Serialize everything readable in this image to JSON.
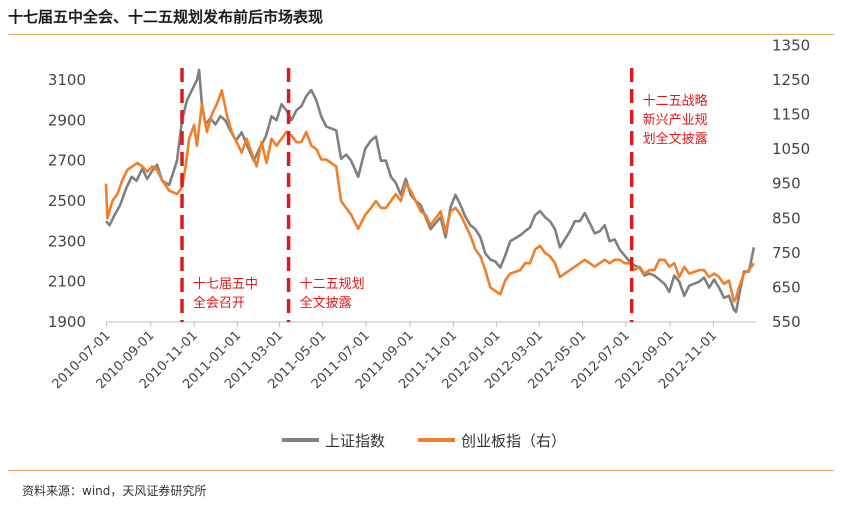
{
  "title": "十七届五中全会、十二五规划发布前后市场表现",
  "source": "资料来源：wind，天风证券研究所",
  "colors": {
    "sh": "#808080",
    "cy": "#f07f2b",
    "event": "#e01a1a",
    "rule": "#e8a75c"
  },
  "chart_data": {
    "type": "line",
    "x_ticks": [
      "2010-07-01",
      "2010-09-01",
      "2010-11-01",
      "2011-01-01",
      "2011-03-01",
      "2011-05-01",
      "2011-07-01",
      "2011-09-01",
      "2011-11-01",
      "2012-01-01",
      "2012-03-01",
      "2012-05-01",
      "2012-07-01",
      "2012-09-01",
      "2012-11-01"
    ],
    "y_left": {
      "ticks": [
        1900,
        2100,
        2300,
        2500,
        2700,
        2900,
        3100
      ],
      "range": [
        1900,
        3200
      ]
    },
    "y_right": {
      "ticks": [
        550,
        650,
        750,
        850,
        950,
        1050,
        1150,
        1250,
        1350
      ],
      "range": [
        550,
        1350
      ]
    },
    "legend": [
      "上证指数",
      "创业板指（右）"
    ],
    "series": [
      {
        "name": "上证指数",
        "axis": "left",
        "points": [
          [
            "2010-06-30",
            2400
          ],
          [
            "2010-07-05",
            2380
          ],
          [
            "2010-07-12",
            2430
          ],
          [
            "2010-07-20",
            2480
          ],
          [
            "2010-07-28",
            2560
          ],
          [
            "2010-08-05",
            2620
          ],
          [
            "2010-08-12",
            2600
          ],
          [
            "2010-08-20",
            2660
          ],
          [
            "2010-08-27",
            2610
          ],
          [
            "2010-09-03",
            2650
          ],
          [
            "2010-09-10",
            2680
          ],
          [
            "2010-09-17",
            2600
          ],
          [
            "2010-09-27",
            2580
          ],
          [
            "2010-10-08",
            2700
          ],
          [
            "2010-10-15",
            2900
          ],
          [
            "2010-10-22",
            3000
          ],
          [
            "2010-10-29",
            3050
          ],
          [
            "2010-11-05",
            3100
          ],
          [
            "2010-11-08",
            3150
          ],
          [
            "2010-11-12",
            2980
          ],
          [
            "2010-11-17",
            2880
          ],
          [
            "2010-11-24",
            2910
          ],
          [
            "2010-12-01",
            2880
          ],
          [
            "2010-12-08",
            2920
          ],
          [
            "2010-12-15",
            2900
          ],
          [
            "2010-12-22",
            2850
          ],
          [
            "2010-12-30",
            2800
          ],
          [
            "2011-01-07",
            2840
          ],
          [
            "2011-01-14",
            2780
          ],
          [
            "2011-01-24",
            2700
          ],
          [
            "2011-02-01",
            2760
          ],
          [
            "2011-02-10",
            2820
          ],
          [
            "2011-02-18",
            2920
          ],
          [
            "2011-02-25",
            2900
          ],
          [
            "2011-03-04",
            2980
          ],
          [
            "2011-03-11",
            2950
          ],
          [
            "2011-03-18",
            2900
          ],
          [
            "2011-03-25",
            2950
          ],
          [
            "2011-04-01",
            2970
          ],
          [
            "2011-04-08",
            3020
          ],
          [
            "2011-04-15",
            3050
          ],
          [
            "2011-04-22",
            3000
          ],
          [
            "2011-04-29",
            2920
          ],
          [
            "2011-05-06",
            2870
          ],
          [
            "2011-05-13",
            2860
          ],
          [
            "2011-05-20",
            2850
          ],
          [
            "2011-05-27",
            2710
          ],
          [
            "2011-06-03",
            2730
          ],
          [
            "2011-06-10",
            2700
          ],
          [
            "2011-06-20",
            2620
          ],
          [
            "2011-06-30",
            2760
          ],
          [
            "2011-07-08",
            2800
          ],
          [
            "2011-07-15",
            2820
          ],
          [
            "2011-07-22",
            2700
          ],
          [
            "2011-07-29",
            2700
          ],
          [
            "2011-08-05",
            2620
          ],
          [
            "2011-08-12",
            2590
          ],
          [
            "2011-08-19",
            2530
          ],
          [
            "2011-08-26",
            2610
          ],
          [
            "2011-09-02",
            2530
          ],
          [
            "2011-09-09",
            2500
          ],
          [
            "2011-09-16",
            2480
          ],
          [
            "2011-09-23",
            2420
          ],
          [
            "2011-09-30",
            2360
          ],
          [
            "2011-10-14",
            2420
          ],
          [
            "2011-10-21",
            2320
          ],
          [
            "2011-10-28",
            2470
          ],
          [
            "2011-11-04",
            2530
          ],
          [
            "2011-11-11",
            2480
          ],
          [
            "2011-11-18",
            2420
          ],
          [
            "2011-11-25",
            2380
          ],
          [
            "2011-12-02",
            2360
          ],
          [
            "2011-12-09",
            2320
          ],
          [
            "2011-12-16",
            2240
          ],
          [
            "2011-12-23",
            2210
          ],
          [
            "2011-12-30",
            2200
          ],
          [
            "2012-01-06",
            2170
          ],
          [
            "2012-01-13",
            2230
          ],
          [
            "2012-01-20",
            2300
          ],
          [
            "2012-02-03",
            2330
          ],
          [
            "2012-02-10",
            2350
          ],
          [
            "2012-02-17",
            2370
          ],
          [
            "2012-02-24",
            2430
          ],
          [
            "2012-03-02",
            2450
          ],
          [
            "2012-03-09",
            2420
          ],
          [
            "2012-03-16",
            2400
          ],
          [
            "2012-03-23",
            2360
          ],
          [
            "2012-03-30",
            2270
          ],
          [
            "2012-04-13",
            2350
          ],
          [
            "2012-04-20",
            2400
          ],
          [
            "2012-04-27",
            2400
          ],
          [
            "2012-05-04",
            2440
          ],
          [
            "2012-05-11",
            2390
          ],
          [
            "2012-05-18",
            2340
          ],
          [
            "2012-05-25",
            2350
          ],
          [
            "2012-06-01",
            2380
          ],
          [
            "2012-06-08",
            2300
          ],
          [
            "2012-06-15",
            2310
          ],
          [
            "2012-06-22",
            2260
          ],
          [
            "2012-06-29",
            2230
          ],
          [
            "2012-07-06",
            2200
          ],
          [
            "2012-07-13",
            2180
          ],
          [
            "2012-07-20",
            2170
          ],
          [
            "2012-07-27",
            2130
          ],
          [
            "2012-08-03",
            2140
          ],
          [
            "2012-08-10",
            2130
          ],
          [
            "2012-08-17",
            2110
          ],
          [
            "2012-08-24",
            2090
          ],
          [
            "2012-08-31",
            2050
          ],
          [
            "2012-09-07",
            2130
          ],
          [
            "2012-09-14",
            2100
          ],
          [
            "2012-09-21",
            2030
          ],
          [
            "2012-09-28",
            2080
          ],
          [
            "2012-10-12",
            2100
          ],
          [
            "2012-10-19",
            2120
          ],
          [
            "2012-10-26",
            2070
          ],
          [
            "2012-11-02",
            2110
          ],
          [
            "2012-11-09",
            2070
          ],
          [
            "2012-11-16",
            2020
          ],
          [
            "2012-11-23",
            2030
          ],
          [
            "2012-11-30",
            1960
          ],
          [
            "2012-12-03",
            1950
          ],
          [
            "2012-12-07",
            2030
          ],
          [
            "2012-12-14",
            2150
          ],
          [
            "2012-12-21",
            2150
          ],
          [
            "2012-12-28",
            2270
          ]
        ]
      },
      {
        "name": "创业板指（右）",
        "axis": "right",
        "points": [
          [
            "2010-06-30",
            950
          ],
          [
            "2010-07-02",
            850
          ],
          [
            "2010-07-09",
            900
          ],
          [
            "2010-07-16",
            920
          ],
          [
            "2010-07-23",
            960
          ],
          [
            "2010-07-30",
            990
          ],
          [
            "2010-08-06",
            1000
          ],
          [
            "2010-08-13",
            1010
          ],
          [
            "2010-08-20",
            1000
          ],
          [
            "2010-08-27",
            985
          ],
          [
            "2010-09-03",
            1000
          ],
          [
            "2010-09-10",
            990
          ],
          [
            "2010-09-17",
            960
          ],
          [
            "2010-09-27",
            930
          ],
          [
            "2010-10-08",
            920
          ],
          [
            "2010-10-15",
            940
          ],
          [
            "2010-10-20",
            1000
          ],
          [
            "2010-10-25",
            1080
          ],
          [
            "2010-11-01",
            1120
          ],
          [
            "2010-11-05",
            1060
          ],
          [
            "2010-11-12",
            1180
          ],
          [
            "2010-11-19",
            1100
          ],
          [
            "2010-11-26",
            1150
          ],
          [
            "2010-12-03",
            1180
          ],
          [
            "2010-12-10",
            1220
          ],
          [
            "2010-12-17",
            1150
          ],
          [
            "2010-12-24",
            1100
          ],
          [
            "2010-12-31",
            1070
          ],
          [
            "2011-01-07",
            1040
          ],
          [
            "2011-01-14",
            1080
          ],
          [
            "2011-01-21",
            1040
          ],
          [
            "2011-01-28",
            1000
          ],
          [
            "2011-02-04",
            1070
          ],
          [
            "2011-02-11",
            1010
          ],
          [
            "2011-02-18",
            1080
          ],
          [
            "2011-02-25",
            1060
          ],
          [
            "2011-03-04",
            1080
          ],
          [
            "2011-03-11",
            1100
          ],
          [
            "2011-03-18",
            1090
          ],
          [
            "2011-03-25",
            1070
          ],
          [
            "2011-04-01",
            1070
          ],
          [
            "2011-04-08",
            1100
          ],
          [
            "2011-04-15",
            1060
          ],
          [
            "2011-04-22",
            1050
          ],
          [
            "2011-04-29",
            1020
          ],
          [
            "2011-05-06",
            1020
          ],
          [
            "2011-05-13",
            1010
          ],
          [
            "2011-05-20",
            1000
          ],
          [
            "2011-05-27",
            900
          ],
          [
            "2011-06-03",
            880
          ],
          [
            "2011-06-10",
            860
          ],
          [
            "2011-06-20",
            820
          ],
          [
            "2011-06-30",
            860
          ],
          [
            "2011-07-08",
            880
          ],
          [
            "2011-07-15",
            900
          ],
          [
            "2011-07-22",
            880
          ],
          [
            "2011-07-29",
            880
          ],
          [
            "2011-08-05",
            900
          ],
          [
            "2011-08-12",
            920
          ],
          [
            "2011-08-19",
            900
          ],
          [
            "2011-08-26",
            950
          ],
          [
            "2011-09-02",
            930
          ],
          [
            "2011-09-09",
            900
          ],
          [
            "2011-09-16",
            870
          ],
          [
            "2011-09-23",
            860
          ],
          [
            "2011-09-30",
            830
          ],
          [
            "2011-10-14",
            870
          ],
          [
            "2011-10-21",
            810
          ],
          [
            "2011-10-28",
            870
          ],
          [
            "2011-11-04",
            880
          ],
          [
            "2011-11-11",
            860
          ],
          [
            "2011-11-18",
            830
          ],
          [
            "2011-11-25",
            800
          ],
          [
            "2011-12-02",
            760
          ],
          [
            "2011-12-09",
            740
          ],
          [
            "2011-12-16",
            700
          ],
          [
            "2011-12-23",
            650
          ],
          [
            "2011-12-30",
            640
          ],
          [
            "2012-01-06",
            630
          ],
          [
            "2012-01-13",
            670
          ],
          [
            "2012-01-20",
            690
          ],
          [
            "2012-02-03",
            700
          ],
          [
            "2012-02-10",
            720
          ],
          [
            "2012-02-17",
            720
          ],
          [
            "2012-02-24",
            760
          ],
          [
            "2012-03-02",
            770
          ],
          [
            "2012-03-09",
            750
          ],
          [
            "2012-03-16",
            740
          ],
          [
            "2012-03-23",
            720
          ],
          [
            "2012-03-30",
            680
          ],
          [
            "2012-04-13",
            700
          ],
          [
            "2012-04-20",
            710
          ],
          [
            "2012-04-27",
            720
          ],
          [
            "2012-05-04",
            730
          ],
          [
            "2012-05-11",
            720
          ],
          [
            "2012-05-18",
            710
          ],
          [
            "2012-05-25",
            720
          ],
          [
            "2012-06-01",
            730
          ],
          [
            "2012-06-08",
            720
          ],
          [
            "2012-06-15",
            730
          ],
          [
            "2012-06-22",
            730
          ],
          [
            "2012-06-29",
            720
          ],
          [
            "2012-07-06",
            720
          ],
          [
            "2012-07-13",
            700
          ],
          [
            "2012-07-20",
            710
          ],
          [
            "2012-07-27",
            690
          ],
          [
            "2012-08-03",
            700
          ],
          [
            "2012-08-10",
            700
          ],
          [
            "2012-08-17",
            730
          ],
          [
            "2012-08-24",
            730
          ],
          [
            "2012-08-31",
            710
          ],
          [
            "2012-09-07",
            720
          ],
          [
            "2012-09-14",
            680
          ],
          [
            "2012-09-21",
            710
          ],
          [
            "2012-09-28",
            690
          ],
          [
            "2012-10-12",
            700
          ],
          [
            "2012-10-19",
            700
          ],
          [
            "2012-10-26",
            680
          ],
          [
            "2012-11-02",
            690
          ],
          [
            "2012-11-09",
            680
          ],
          [
            "2012-11-16",
            660
          ],
          [
            "2012-11-23",
            670
          ],
          [
            "2012-11-30",
            610
          ],
          [
            "2012-12-03",
            620
          ],
          [
            "2012-12-07",
            650
          ],
          [
            "2012-12-14",
            690
          ],
          [
            "2012-12-21",
            700
          ],
          [
            "2012-12-28",
            720
          ]
        ]
      }
    ],
    "events": [
      {
        "date": "2010-10-15",
        "label_lines": [
          "十七届五中",
          "全会召开"
        ]
      },
      {
        "date": "2011-03-14",
        "label_lines": [
          "十二五规划",
          "全文披露"
        ]
      },
      {
        "date": "2012-07-09",
        "label_lines": [
          "十二五战略",
          "新兴产业规",
          "划全文披露"
        ]
      }
    ],
    "grid": false,
    "legend_position": "bottom"
  }
}
